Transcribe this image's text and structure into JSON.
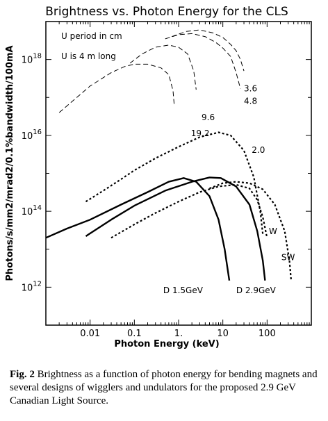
{
  "caption": {
    "label": "Fig. 2",
    "text": "Brightness as a function of photon energy for bending magnets and several designs of wigglers and undulators for the proposed 2.9 GeV Canadian Light Source."
  },
  "chart_data": {
    "type": "line",
    "title": "Brightness vs. Photon Energy for the CLS",
    "xlabel": "Photon Energy (keV)",
    "ylabel": "Photons/s/mm2/mrad2/0.1%bandwidth/100mA",
    "x_scale": "log",
    "y_scale": "log",
    "xlim": [
      0.001,
      1000
    ],
    "ylim": [
      100000000000.0,
      1e+19
    ],
    "x_ticks": [
      {
        "value": 0.01,
        "label": "0.01"
      },
      {
        "value": 0.1,
        "label": "0.1"
      },
      {
        "value": 1,
        "label": "1."
      },
      {
        "value": 10,
        "label": "10"
      },
      {
        "value": 100,
        "label": "100"
      }
    ],
    "y_ticks": [
      {
        "value": 1000000000000.0,
        "base": "10",
        "exp": "12"
      },
      {
        "value": 100000000000000.0,
        "base": "10",
        "exp": "14"
      },
      {
        "value": 1e+16,
        "base": "10",
        "exp": "16"
      },
      {
        "value": 1e+18,
        "base": "10",
        "exp": "18"
      }
    ],
    "annotations": {
      "undulator_period": "U period in cm",
      "undulator_length": "U is 4 m long"
    },
    "series": [
      {
        "label": "3.6",
        "group": "undulator",
        "style": "dashed",
        "label_at": [
          30,
          1.45e+17
        ],
        "points": [
          [
            0.7,
            4e+18
          ],
          [
            1.5,
            5.5e+18
          ],
          [
            3,
            6e+18
          ],
          [
            6,
            5e+18
          ],
          [
            10,
            3.8e+18
          ],
          [
            15,
            2.5e+18
          ],
          [
            20,
            1.7e+18
          ],
          [
            25,
            1e+18
          ],
          [
            30,
            5e+17
          ]
        ]
      },
      {
        "label": "4.8",
        "group": "undulator",
        "style": "dashed",
        "label_at": [
          30,
          6.8e+16
        ],
        "points": [
          [
            0.5,
            3.5e+18
          ],
          [
            1,
            4.5e+18
          ],
          [
            2,
            4.8e+18
          ],
          [
            4,
            4e+18
          ],
          [
            7,
            2.8e+18
          ],
          [
            10,
            2e+18
          ],
          [
            15,
            1.2e+18
          ],
          [
            20,
            4.5e+17
          ],
          [
            25,
            1.7e+17
          ]
        ]
      },
      {
        "label": "9.6",
        "group": "undulator",
        "style": "dashed",
        "label_at": [
          3.3,
          2.5e+16
        ],
        "points": [
          [
            0.08,
            8e+17
          ],
          [
            0.15,
            1.4e+18
          ],
          [
            0.3,
            2.1e+18
          ],
          [
            0.6,
            2.4e+18
          ],
          [
            1,
            2.1e+18
          ],
          [
            1.6,
            1.4e+18
          ],
          [
            2.2,
            5e+17
          ],
          [
            2.5,
            1.6e+17
          ]
        ]
      },
      {
        "label": "19.2",
        "group": "undulator",
        "style": "dashed",
        "label_at": [
          1.9,
          9500000000000000.0
        ],
        "points": [
          [
            0.002,
            4e+16
          ],
          [
            0.005,
            1e+17
          ],
          [
            0.01,
            2e+17
          ],
          [
            0.03,
            4.5e+17
          ],
          [
            0.06,
            6.5e+17
          ],
          [
            0.1,
            7.5e+17
          ],
          [
            0.2,
            7.5e+17
          ],
          [
            0.4,
            6e+17
          ],
          [
            0.6,
            4e+17
          ],
          [
            0.75,
            1.5e+17
          ],
          [
            0.8,
            6e+16
          ]
        ]
      },
      {
        "label": "2.0",
        "group": "wiggler",
        "style": "dotted",
        "label_at": [
          45,
          3500000000000000.0
        ],
        "points": [
          [
            0.008,
            180000000000000.0
          ],
          [
            0.02,
            350000000000000.0
          ],
          [
            0.05,
            700000000000000.0
          ],
          [
            0.1,
            1200000000000000.0
          ],
          [
            0.3,
            2500000000000000.0
          ],
          [
            1,
            5000000000000000.0
          ],
          [
            3,
            9000000000000000.0
          ],
          [
            8,
            1.2e+16
          ],
          [
            15,
            1e+16
          ],
          [
            30,
            4000000000000000.0
          ],
          [
            50,
            800000000000000.0
          ],
          [
            70,
            100000000000000.0
          ],
          [
            80,
            25000000000000.0
          ]
        ]
      },
      {
        "label": "W",
        "group": "wiggler",
        "style": "dotted",
        "label_at": [
          110,
          25000000000000.0
        ],
        "points": [
          [
            0.03,
            20000000000000.0
          ],
          [
            0.1,
            45000000000000.0
          ],
          [
            0.3,
            90000000000000.0
          ],
          [
            1,
            180000000000000.0
          ],
          [
            3,
            320000000000000.0
          ],
          [
            8,
            450000000000000.0
          ],
          [
            20,
            500000000000000.0
          ],
          [
            40,
            400000000000000.0
          ],
          [
            60,
            200000000000000.0
          ],
          [
            80,
            70000000000000.0
          ],
          [
            100,
            20000000000000.0
          ]
        ]
      },
      {
        "label": "SW",
        "group": "wiggler",
        "style": "dotted",
        "label_at": [
          210,
          5200000000000.0
        ],
        "points": [
          [
            5,
            400000000000000.0
          ],
          [
            10,
            550000000000000.0
          ],
          [
            20,
            600000000000000.0
          ],
          [
            40,
            550000000000000.0
          ],
          [
            80,
            380000000000000.0
          ],
          [
            150,
            150000000000000.0
          ],
          [
            250,
            30000000000000.0
          ],
          [
            320,
            5000000000000.0
          ],
          [
            350,
            1500000000000.0
          ]
        ]
      },
      {
        "label": "D 1.5GeV",
        "group": "bending_magnet",
        "style": "solid",
        "label_at": [
          0.45,
          700000000000.0
        ],
        "points": [
          [
            0.001,
            20000000000000.0
          ],
          [
            0.003,
            35000000000000.0
          ],
          [
            0.01,
            60000000000000.0
          ],
          [
            0.05,
            150000000000000.0
          ],
          [
            0.2,
            320000000000000.0
          ],
          [
            0.6,
            600000000000000.0
          ],
          [
            1.3,
            750000000000000.0
          ],
          [
            2.5,
            600000000000000.0
          ],
          [
            5,
            250000000000000.0
          ],
          [
            8,
            60000000000000.0
          ],
          [
            11,
            10000000000000.0
          ],
          [
            14,
            1500000000000.0
          ]
        ]
      },
      {
        "label": "D 2.9GeV",
        "group": "bending_magnet",
        "style": "solid",
        "label_at": [
          20,
          700000000000.0
        ],
        "points": [
          [
            0.008,
            22000000000000.0
          ],
          [
            0.03,
            60000000000000.0
          ],
          [
            0.1,
            140000000000000.0
          ],
          [
            0.5,
            350000000000000.0
          ],
          [
            2,
            600000000000000.0
          ],
          [
            5,
            780000000000000.0
          ],
          [
            9,
            750000000000000.0
          ],
          [
            20,
            450000000000000.0
          ],
          [
            40,
            150000000000000.0
          ],
          [
            60,
            30000000000000.0
          ],
          [
            80,
            5000000000000.0
          ],
          [
            90,
            1500000000000.0
          ]
        ]
      }
    ]
  }
}
